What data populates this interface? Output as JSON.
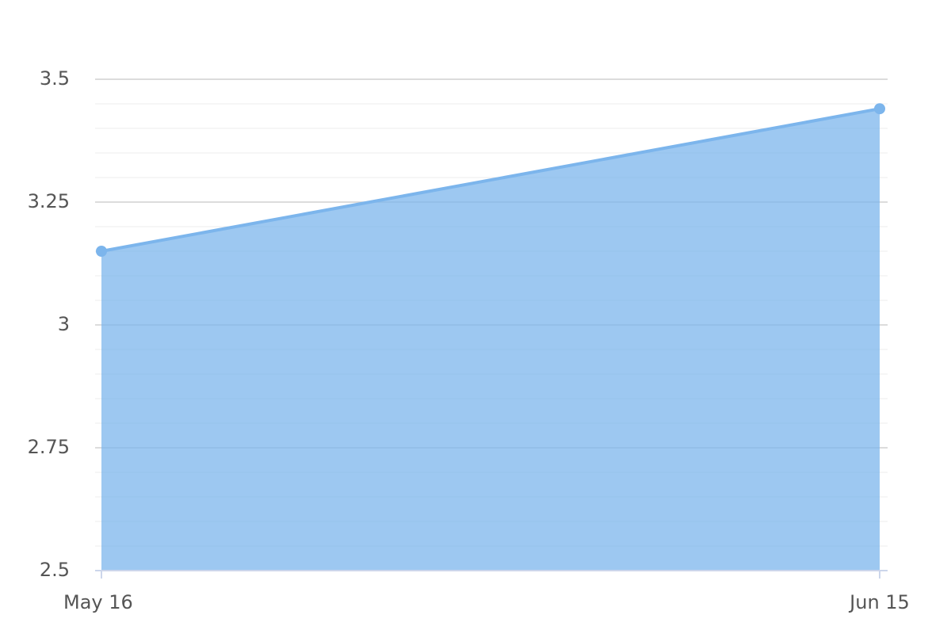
{
  "chart_data": {
    "type": "area",
    "categories": [
      "May 16",
      "Jun 15"
    ],
    "values": [
      3.15,
      3.44
    ],
    "color": "#7cb5ec",
    "ylim": [
      2.5,
      3.5
    ],
    "yticks": [
      2.5,
      2.75,
      3,
      3.25,
      3.5
    ],
    "grid": true,
    "minor_grid_divisions": 5
  }
}
